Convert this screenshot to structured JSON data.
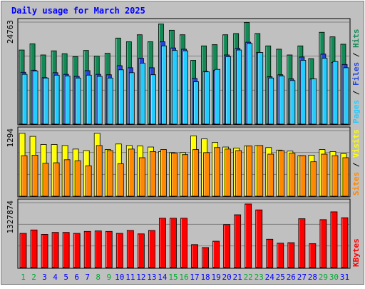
{
  "chart_data": {
    "type": "bar",
    "title": "Daily usage for March 2025",
    "categories": [
      "1",
      "2",
      "3",
      "4",
      "5",
      "6",
      "7",
      "8",
      "9",
      "10",
      "11",
      "12",
      "13",
      "14",
      "15",
      "16",
      "17",
      "18",
      "19",
      "20",
      "21",
      "22",
      "23",
      "24",
      "25",
      "26",
      "27",
      "28",
      "29",
      "30",
      "31"
    ],
    "weekend_categories": [
      "1",
      "2",
      "8",
      "9",
      "15",
      "16",
      "22",
      "23",
      "29",
      "30"
    ],
    "panels": [
      {
        "id": "hits-files-pages",
        "ymax_label": "24763",
        "ymax": 24763,
        "ylabel_parts": [
          "Pages",
          "Files",
          "Hits"
        ],
        "series": [
          {
            "name": "Hits",
            "color": "#138a55",
            "values": [
              18000,
              19500,
              16800,
              17800,
              17100,
              16400,
              17900,
              16500,
              17200,
              20900,
              20000,
              21700,
              20000,
              24300,
              22800,
              21700,
              15500,
              19000,
              19300,
              21700,
              22000,
              24700,
              22000,
              19000,
              18200,
              16800,
              19000,
              15900,
              22300,
              21200,
              19400
            ]
          },
          {
            "name": "Files",
            "color": "#2244dd",
            "values": [
              12600,
              13100,
              11300,
              12500,
              12100,
              11600,
              13000,
              12100,
              12000,
              14200,
              13700,
              16000,
              13700,
              20000,
              18500,
              18200,
              11100,
              12800,
              13100,
              16800,
              18400,
              19900,
              17400,
              11500,
              12000,
              11000,
              16300,
              11000,
              17000,
              15000,
              14500
            ]
          },
          {
            "name": "Pages",
            "color": "#22ccff",
            "values": [
              12100,
              12900,
              11200,
              11900,
              11700,
              11200,
              11900,
              11600,
              11200,
              13200,
              12500,
              14800,
              12000,
              19000,
              17900,
              17800,
              10300,
              12700,
              13300,
              16400,
              18000,
              19600,
              17400,
              11200,
              11700,
              10600,
              15500,
              11000,
              16000,
              15200,
              13700
            ]
          }
        ]
      },
      {
        "id": "visits-sites",
        "ymax_label": "1294",
        "ymax": 1294,
        "ylabel_parts": [
          "Sites",
          "Visits"
        ],
        "series": [
          {
            "name": "Visits",
            "color": "#ffff00",
            "values": [
              1240,
              1180,
              1020,
              1020,
              1000,
              930,
              900,
              1240,
              920,
              1030,
              1000,
              990,
              970,
              880,
              860,
              860,
              1190,
              1130,
              1060,
              970,
              950,
              990,
              1000,
              960,
              910,
              890,
              800,
              810,
              920,
              880,
              840
            ]
          },
          {
            "name": "Sites",
            "color": "#ff8800",
            "values": [
              800,
              810,
              650,
              660,
              720,
              700,
              600,
              1000,
              900,
              640,
              930,
              760,
              880,
              920,
              850,
              820,
              920,
              860,
              960,
              930,
              900,
              990,
              1000,
              830,
              900,
              850,
              800,
              680,
              830,
              800,
              760
            ]
          }
        ]
      },
      {
        "id": "kbytes",
        "ymax_label": "1327874",
        "ymax": 1327874,
        "ylabel_parts": [
          "KBytes"
        ],
        "series": [
          {
            "name": "KBytes",
            "color": "#ff0000",
            "values": [
              700000,
              770000,
              680000,
              720000,
              720000,
              700000,
              740000,
              750000,
              740000,
              700000,
              760000,
              690000,
              760000,
              1010000,
              1010000,
              1010000,
              470000,
              410000,
              540000,
              880000,
              1080000,
              1300000,
              1180000,
              580000,
              500000,
              510000,
              1000000,
              490000,
              980000,
              1140000,
              1020000
            ]
          }
        ]
      }
    ],
    "colors": {
      "background": "#c0c0c0",
      "title": "#0000ff",
      "weekday_label": "#0000ff",
      "weekend_label": "#00aa33",
      "grid": "#808080",
      "separator": "#000000"
    }
  }
}
